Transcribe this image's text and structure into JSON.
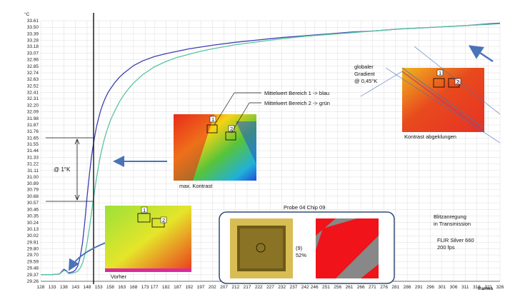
{
  "chart_data": {
    "type": "line",
    "y_unit": "°C",
    "x_unit": "frames",
    "ylim": [
      29.26,
      33.61
    ],
    "xlim": [
      128,
      326
    ],
    "grid": true,
    "y_ticks": [
      "33.61",
      "33.50",
      "33.39",
      "33.28",
      "33.18",
      "33.07",
      "32.96",
      "32.85",
      "32.74",
      "32.63",
      "32.52",
      "32.41",
      "32.31",
      "32.20",
      "32.09",
      "31.98",
      "31.87",
      "31.76",
      "31.65",
      "31.55",
      "31.44",
      "31.33",
      "31.22",
      "31.11",
      "31.00",
      "30.89",
      "30.79",
      "30.68",
      "30.57",
      "30.46",
      "30.35",
      "30.24",
      "30.13",
      "30.02",
      "29.91",
      "29.80",
      "29.70",
      "29.59",
      "29.48",
      "29.37",
      "29.26"
    ],
    "x_ticks": [
      "128",
      "133",
      "138",
      "143",
      "148",
      "153",
      "158",
      "163",
      "168",
      "173",
      "177",
      "182",
      "187",
      "192",
      "197",
      "202",
      "207",
      "212",
      "217",
      "222",
      "227",
      "232",
      "237",
      "242",
      "246",
      "251",
      "256",
      "261",
      "266",
      "271",
      "276",
      "281",
      "286",
      "291",
      "296",
      "301",
      "306",
      "311",
      "316",
      "321",
      "326"
    ],
    "series": [
      {
        "color": "#3d3fb4",
        "x": [
          128,
          132,
          136,
          138,
          139,
          140,
          141,
          142,
          143,
          144,
          145,
          146,
          147,
          148,
          149,
          150,
          151,
          152,
          153,
          154,
          155,
          156,
          157,
          158,
          160,
          162,
          164,
          166,
          168,
          172,
          177,
          182,
          187,
          192,
          197,
          202,
          212,
          222,
          232,
          242,
          252,
          262,
          272,
          282,
          292,
          302,
          312,
          322,
          326
        ],
        "y": [
          29.37,
          29.37,
          29.38,
          29.46,
          29.44,
          29.4,
          29.41,
          29.42,
          29.45,
          29.52,
          29.66,
          29.9,
          30.25,
          30.67,
          31.05,
          31.37,
          31.62,
          31.83,
          31.99,
          32.13,
          32.24,
          32.33,
          32.41,
          32.47,
          32.58,
          32.67,
          32.74,
          32.8,
          32.86,
          32.94,
          33.01,
          33.06,
          33.1,
          33.14,
          33.17,
          33.2,
          33.25,
          33.29,
          33.33,
          33.36,
          33.39,
          33.42,
          33.44,
          33.47,
          33.49,
          33.51,
          33.53,
          33.56,
          33.57
        ]
      },
      {
        "color": "#59c3a2",
        "x": [
          128,
          132,
          136,
          138,
          139,
          140,
          141,
          142,
          143,
          144,
          145,
          146,
          147,
          148,
          149,
          150,
          151,
          152,
          153,
          154,
          155,
          156,
          157,
          158,
          159,
          160,
          162,
          164,
          166,
          168,
          172,
          177,
          182,
          187,
          192,
          197,
          202,
          212,
          222,
          232,
          242,
          252,
          262,
          272,
          282,
          292,
          302,
          312,
          322,
          326
        ],
        "y": [
          29.37,
          29.37,
          29.38,
          29.44,
          29.43,
          29.39,
          29.39,
          29.4,
          29.41,
          29.43,
          29.48,
          29.56,
          29.7,
          29.9,
          30.15,
          30.43,
          30.71,
          30.97,
          31.2,
          31.4,
          31.57,
          31.71,
          31.83,
          31.94,
          32.03,
          32.11,
          32.26,
          32.38,
          32.48,
          32.57,
          32.71,
          32.84,
          32.93,
          33.0,
          33.05,
          33.1,
          33.14,
          33.21,
          33.26,
          33.31,
          33.35,
          33.38,
          33.41,
          33.44,
          33.47,
          33.49,
          33.51,
          33.53,
          33.55,
          33.56
        ]
      }
    ],
    "annotations": {
      "mean1": "Mittelwert Bereich 1 -> blau",
      "mean2": "Mittelwert Bereich 2 -> grün",
      "gradient": [
        "globaler",
        "Gradient",
        "@ 0,45°K"
      ],
      "delta": "@ 1°K",
      "max_kontrast": "max. Kontrast",
      "kontrast_abgeklungen": "Kontrast abgeklungen",
      "vorher": "Vorher",
      "probe": "Probe 04 Chip 09",
      "chip_num": "(9)",
      "chip_pct": "52%",
      "blitz": [
        "Blitzanregung",
        "in Transmission"
      ],
      "camera": [
        "FLIR Silver 660",
        "200 fps"
      ],
      "box1": "1",
      "box2": "2"
    }
  }
}
